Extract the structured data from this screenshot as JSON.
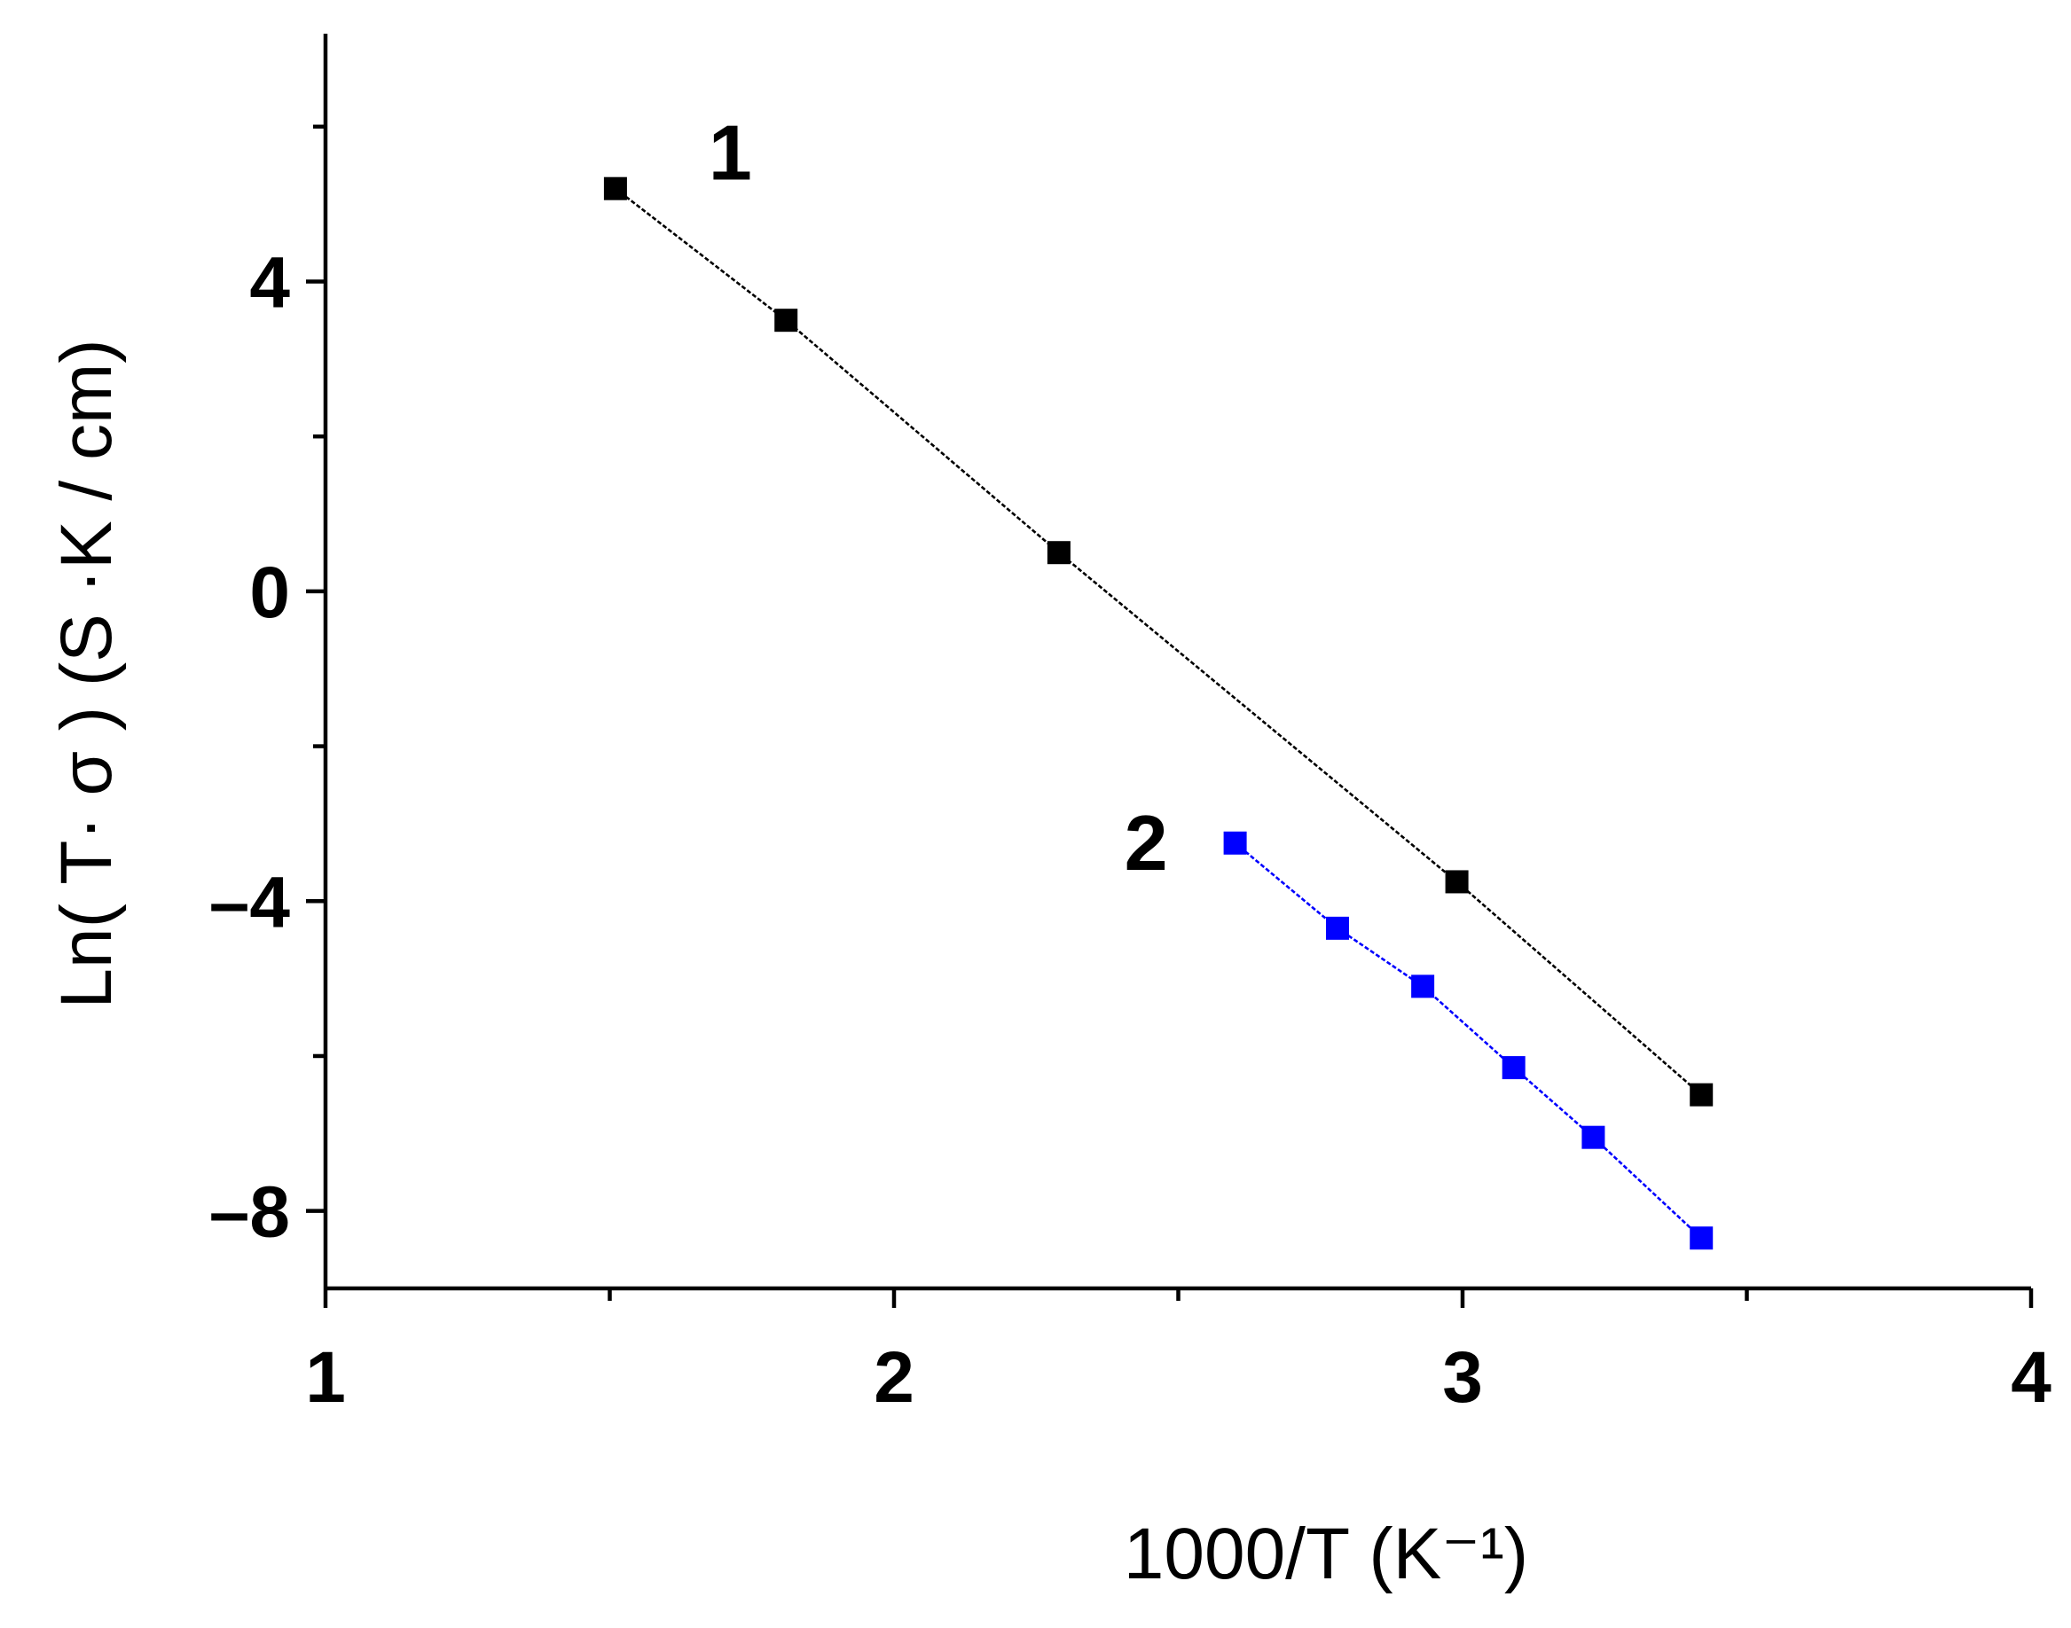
{
  "chart_data": {
    "type": "line",
    "xlabel": "1000/T (K⁻¹)",
    "ylabel": "Ln( T· σ ) (S ·K / cm)",
    "xlim": [
      1,
      4
    ],
    "ylim": [
      -9,
      7.2
    ],
    "x_ticks": [
      1,
      2,
      3,
      4
    ],
    "y_ticks": [
      -8,
      -4,
      0,
      4
    ],
    "grid": false,
    "series": [
      {
        "name": "1",
        "color": "#000000",
        "x": [
          1.51,
          1.81,
          2.29,
          2.99,
          3.42
        ],
        "y": [
          5.2,
          3.5,
          0.5,
          -3.75,
          -6.5
        ]
      },
      {
        "name": "2",
        "color": "#0000ff",
        "x": [
          2.6,
          2.78,
          2.93,
          3.09,
          3.23,
          3.42
        ],
        "y": [
          -3.25,
          -4.35,
          -5.1,
          -6.15,
          -7.05,
          -8.35
        ]
      }
    ]
  }
}
